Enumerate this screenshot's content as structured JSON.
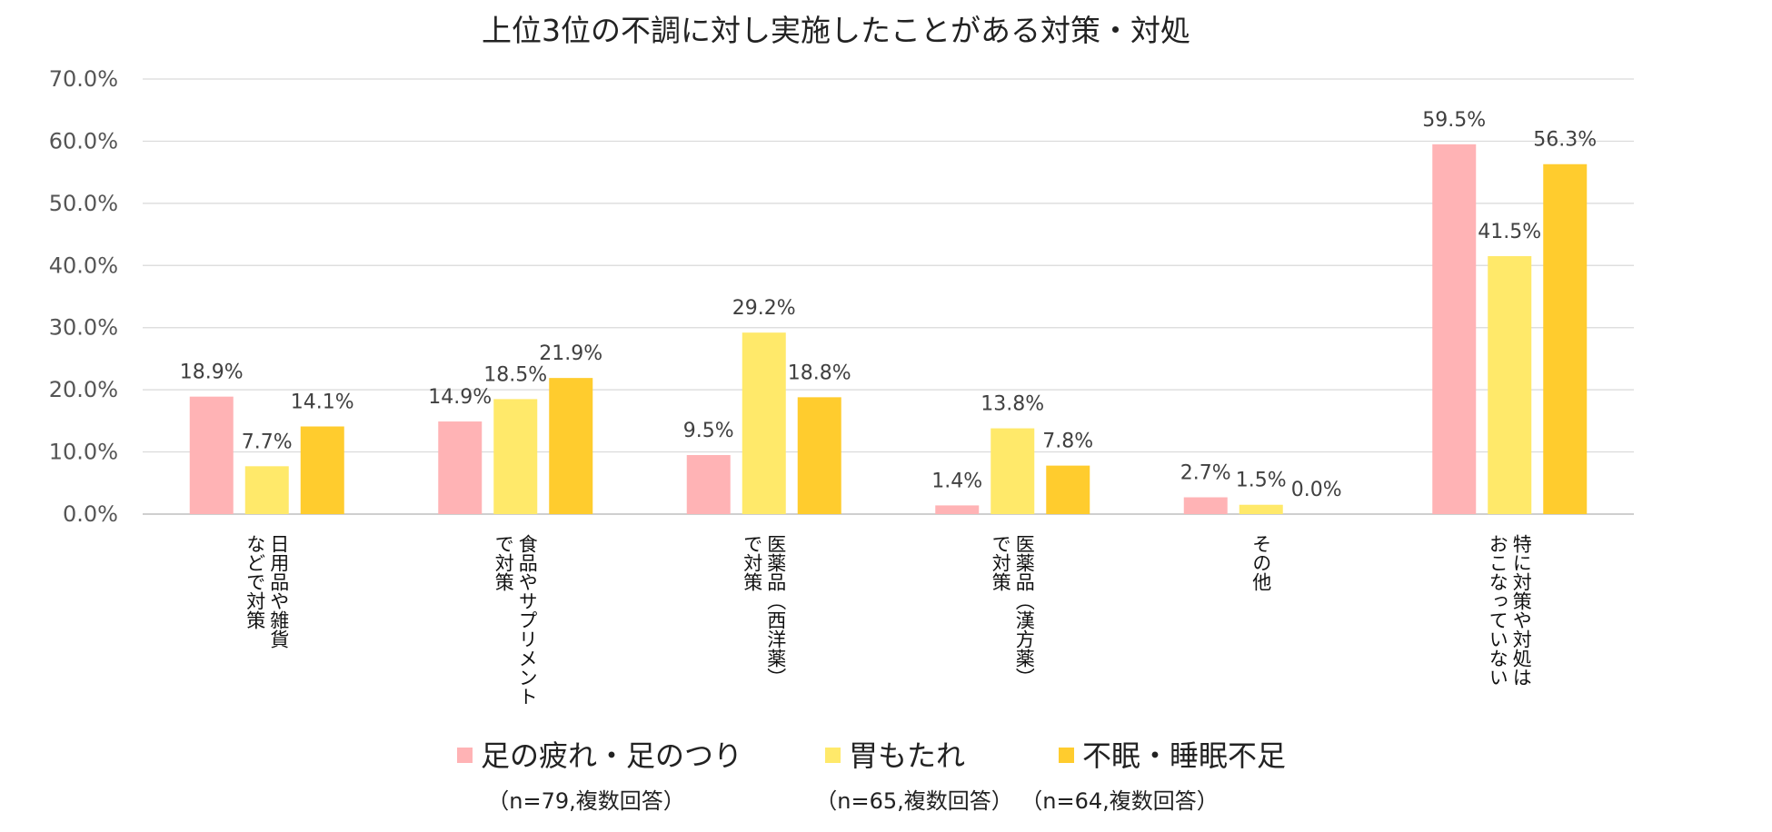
{
  "chart_data": {
    "type": "bar",
    "title": "上位3位の不調に対し実施したことがある対策・対処",
    "xlabel": "",
    "ylabel": "",
    "ylim": [
      0,
      70
    ],
    "yticks": [
      "0.0%",
      "10.0%",
      "20.0%",
      "30.0%",
      "40.0%",
      "50.0%",
      "60.0%",
      "70.0%"
    ],
    "grid": true,
    "legend_position": "bottom",
    "categories": [
      [
        "日用品や雑貨",
        "などで対策"
      ],
      [
        "食品やサプリメント",
        "で対策"
      ],
      [
        "医薬品（西洋薬）",
        "で対策"
      ],
      [
        "医薬品（漢方薬）",
        "で対策"
      ],
      [
        "その他"
      ],
      [
        "特に対策や対処は",
        "おこなっていない"
      ]
    ],
    "series": [
      {
        "name": "足の疲れ・足のつり",
        "note": "（n=79,複数回答）",
        "color": "#FFB3B5",
        "values": [
          18.9,
          14.9,
          9.5,
          1.4,
          2.7,
          59.5
        ],
        "labels": [
          "18.9%",
          "14.9%",
          "9.5%",
          "1.4%",
          "2.7%",
          "59.5%"
        ]
      },
      {
        "name": "胃もたれ",
        "note": "（n=65,複数回答）",
        "color": "#FFE96A",
        "values": [
          7.7,
          18.5,
          29.2,
          13.8,
          1.5,
          41.5
        ],
        "labels": [
          "7.7%",
          "18.5%",
          "29.2%",
          "13.8%",
          "1.5%",
          "41.5%"
        ]
      },
      {
        "name": "不眠・睡眠不足",
        "note": "（n=64,複数回答）",
        "color": "#FFCC2E",
        "values": [
          14.1,
          21.9,
          18.8,
          7.8,
          0.0,
          56.3
        ],
        "labels": [
          "14.1%",
          "21.9%",
          "18.8%",
          "7.8%",
          "0.0%",
          "56.3%"
        ]
      }
    ]
  }
}
